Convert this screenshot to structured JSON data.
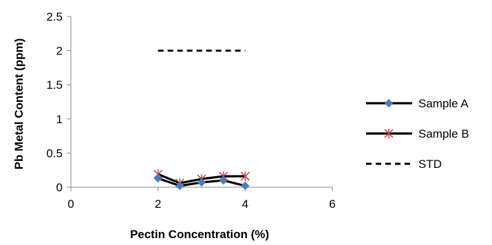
{
  "chart_data": {
    "type": "line",
    "title": "",
    "xlabel": "Pectin Concentration (%)",
    "ylabel": "Pb Metal Content (ppm)",
    "xlim": [
      0,
      6
    ],
    "ylim": [
      0,
      2.5
    ],
    "xticks": [
      0,
      2,
      4,
      6
    ],
    "yticks": [
      0,
      0.5,
      1,
      1.5,
      2,
      2.5
    ],
    "xtick_labels": [
      "0",
      "2",
      "4",
      "6"
    ],
    "ytick_labels": [
      "0",
      "0.5",
      "1",
      "1.5",
      "2",
      "2.5"
    ],
    "grid": false,
    "legend_position": "right",
    "series": [
      {
        "name": "Sample A",
        "x": [
          2,
          2.5,
          3,
          3.5,
          4
        ],
        "y": [
          0.13,
          0.02,
          0.07,
          0.1,
          0.02
        ],
        "line_color": "#000000",
        "line_style": "solid",
        "marker": "diamond",
        "marker_color": "#4a7ebb"
      },
      {
        "name": "Sample B",
        "x": [
          2,
          2.5,
          3,
          3.5,
          4
        ],
        "y": [
          0.19,
          0.06,
          0.12,
          0.16,
          0.16
        ],
        "line_color": "#000000",
        "line_style": "solid",
        "marker": "star",
        "marker_color": "#be4b48"
      },
      {
        "name": "STD",
        "x": [
          2,
          4
        ],
        "y": [
          2,
          2
        ],
        "line_color": "#000000",
        "line_style": "dashed",
        "marker": "none",
        "marker_color": "#000000"
      }
    ]
  }
}
